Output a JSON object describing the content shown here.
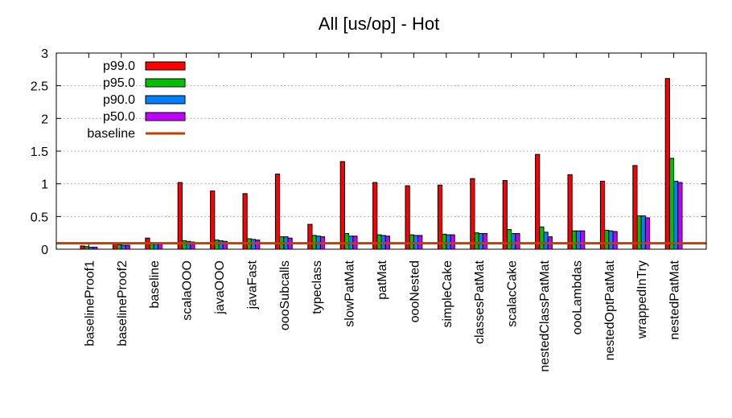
{
  "chart_data": {
    "type": "bar",
    "title": "All [us/op] - Hot",
    "xlabel": "",
    "ylabel": "",
    "ylim": [
      0,
      3
    ],
    "yticks": [
      "0",
      "0.5",
      "1",
      "1.5",
      "2",
      "2.5",
      "3"
    ],
    "grid": true,
    "legend_position": "top-left",
    "categories": [
      "baselineProof1",
      "baselineProof2",
      "baseline",
      "scalaOOO",
      "javaOOO",
      "javaFast",
      "oooSubcalls",
      "typeclass",
      "slowPatMat",
      "patMat",
      "oooNested",
      "simpleCake",
      "classesPatMat",
      "scalacCake",
      "nestedClassPatMat",
      "oooLambdas",
      "nestedOptPatMat",
      "wrappedInTry",
      "nestedPatMat"
    ],
    "series": [
      {
        "name": "p99.0",
        "color": "#ff0000",
        "values": [
          0.05,
          0.08,
          0.17,
          1.02,
          0.89,
          0.85,
          1.15,
          0.38,
          1.34,
          1.02,
          0.97,
          0.98,
          1.08,
          1.05,
          1.45,
          1.14,
          1.04,
          1.28,
          2.61
        ]
      },
      {
        "name": "p95.0",
        "color": "#00c000",
        "values": [
          0.04,
          0.07,
          0.1,
          0.13,
          0.14,
          0.16,
          0.19,
          0.21,
          0.24,
          0.22,
          0.22,
          0.23,
          0.25,
          0.3,
          0.34,
          0.28,
          0.29,
          0.51,
          1.39
        ]
      },
      {
        "name": "p90.0",
        "color": "#0080ff",
        "values": [
          0.03,
          0.06,
          0.09,
          0.12,
          0.13,
          0.15,
          0.19,
          0.2,
          0.2,
          0.21,
          0.21,
          0.22,
          0.24,
          0.24,
          0.26,
          0.28,
          0.28,
          0.51,
          1.04
        ]
      },
      {
        "name": "p50.0",
        "color": "#c000ff",
        "values": [
          0.03,
          0.06,
          0.09,
          0.11,
          0.12,
          0.14,
          0.17,
          0.19,
          0.2,
          0.2,
          0.21,
          0.22,
          0.24,
          0.24,
          0.19,
          0.28,
          0.27,
          0.48,
          1.02
        ]
      }
    ],
    "baseline": {
      "name": "baseline",
      "value": 0.09,
      "color": "#c04000"
    }
  }
}
